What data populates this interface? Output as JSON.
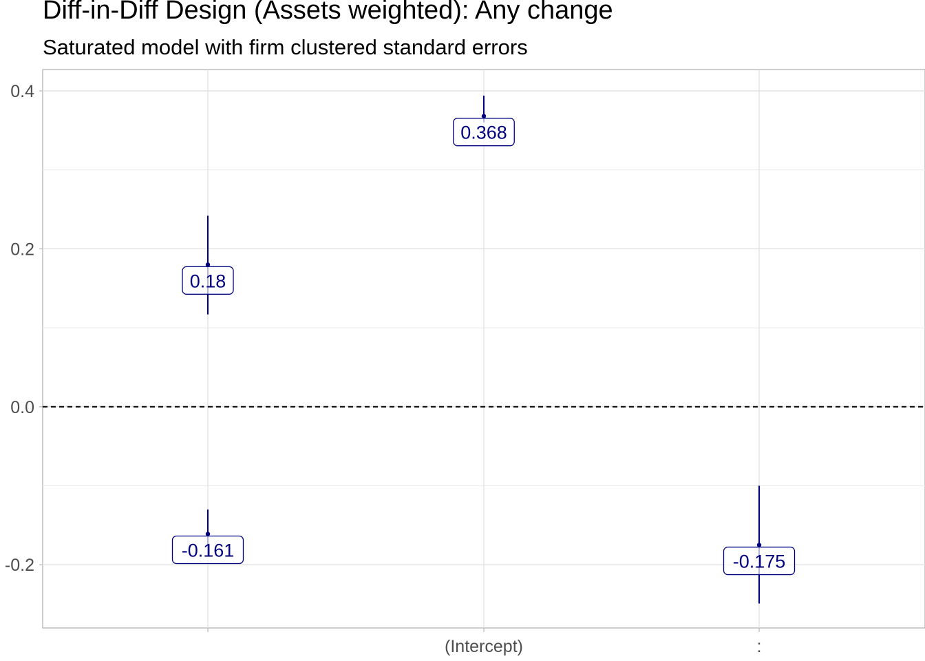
{
  "chart_data": {
    "type": "errorbar",
    "title": "Diff-in-Diff Design (Assets weighted): Any change",
    "subtitle": "Saturated model with firm clustered standard errors",
    "xlabel": "",
    "ylabel": "",
    "categories": [
      "",
      "(Intercept)",
      ":"
    ],
    "ylim": [
      -0.28,
      0.427
    ],
    "y_ticks": [
      -0.2,
      0.0,
      0.2,
      0.4
    ],
    "y_tick_labels": [
      "-0.2",
      "0.0",
      "0.2",
      "0.4"
    ],
    "reference_line": {
      "y": 0,
      "style": "dashed"
    },
    "grid": true,
    "series_color": "#000080",
    "points": [
      {
        "category_index": 0,
        "estimate": 0.18,
        "lower": 0.117,
        "upper": 0.242,
        "label": "0.18"
      },
      {
        "category_index": 0,
        "estimate": -0.161,
        "lower": -0.189,
        "upper": -0.13,
        "label": "-0.161"
      },
      {
        "category_index": 1,
        "estimate": 0.368,
        "lower": 0.36,
        "upper": 0.394,
        "label": "0.368"
      },
      {
        "category_index": 2,
        "estimate": -0.175,
        "lower": -0.249,
        "upper": -0.1,
        "label": "-0.175"
      }
    ]
  }
}
